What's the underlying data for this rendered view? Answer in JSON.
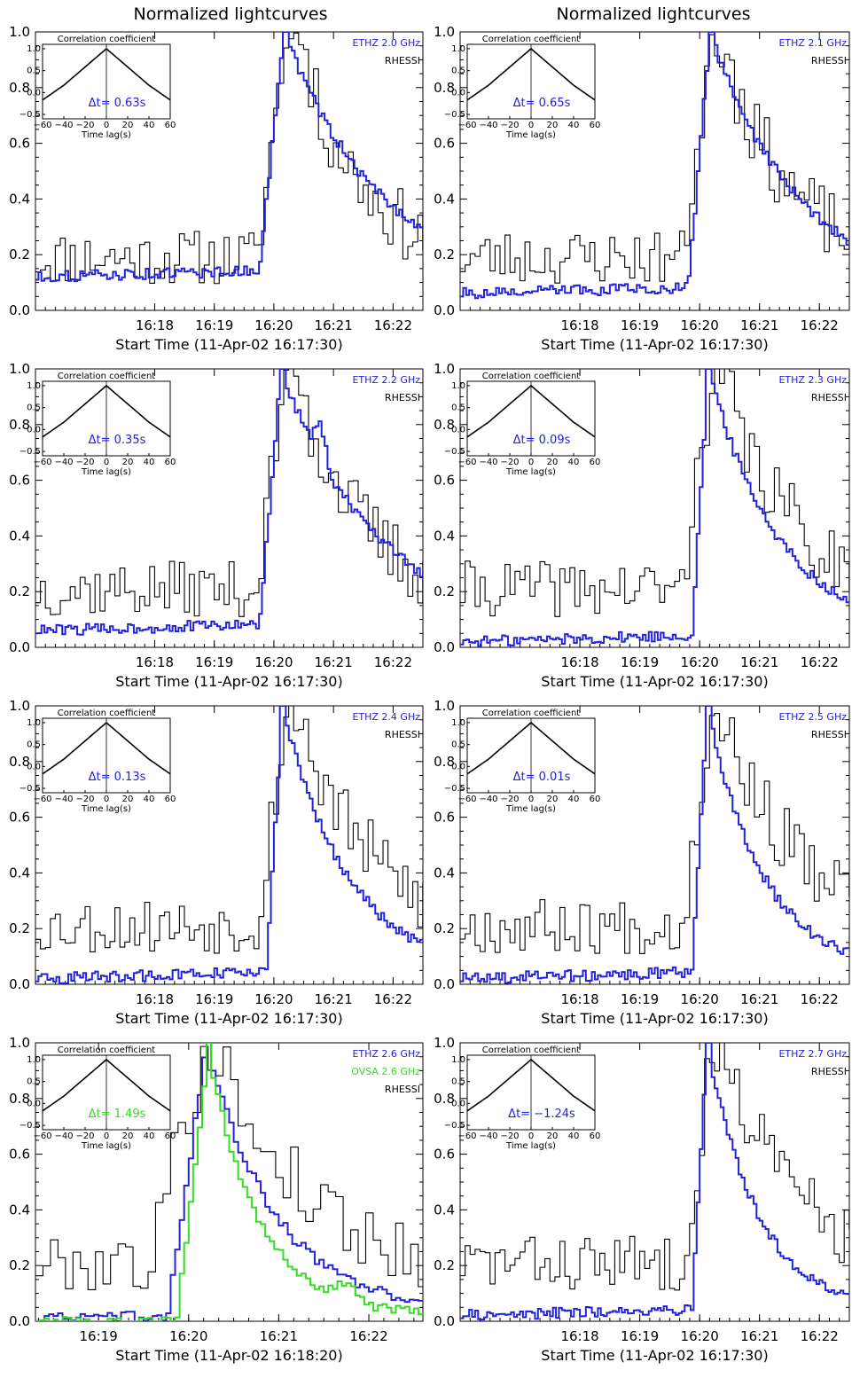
{
  "figure": {
    "titles": [
      "Normalized lightcurves",
      "Normalized lightcurves"
    ],
    "y_ticks": [
      "0.0",
      "0.2",
      "0.4",
      "0.6",
      "0.8",
      "1.0"
    ],
    "inset_title": "Correlation coefficient",
    "inset_xlabel": "Time lag(s)",
    "inset_xticks": [
      "−60",
      "−40",
      "−20",
      "0",
      "20",
      "40",
      "60"
    ],
    "inset_yticks": [
      "1.0",
      "0.5",
      "0.0",
      "−0.5"
    ],
    "colors": {
      "ethz": "#2222dd",
      "ovsa": "#33dd22",
      "rhessi": "#000000"
    }
  },
  "chart_data": [
    {
      "type": "line",
      "xlabel": "Start Time (11-Apr-02 16:17:30)",
      "xticks": [
        "16:18",
        "16:19",
        "16:20",
        "16:21",
        "16:22"
      ],
      "xlim": [
        16.0,
        22.5
      ],
      "ylim": [
        0,
        1
      ],
      "series": [
        {
          "name": "ETHZ 2.0 GHz",
          "color": "#2222dd"
        },
        {
          "name": "RHESSI",
          "color": "#000000"
        }
      ],
      "lag": {
        "label": "Δt= 0.63s",
        "value": 0.63,
        "color": "#2222dd"
      }
    },
    {
      "type": "line",
      "xlabel": "Start Time (11-Apr-02 16:17:30)",
      "xticks": [
        "16:18",
        "16:19",
        "16:20",
        "16:21",
        "16:22"
      ],
      "xlim": [
        16.0,
        22.5
      ],
      "ylim": [
        0,
        1
      ],
      "series": [
        {
          "name": "ETHZ 2.1 GHz",
          "color": "#2222dd"
        },
        {
          "name": "RHESSI",
          "color": "#000000"
        }
      ],
      "lag": {
        "label": "Δt= 0.65s",
        "value": 0.65,
        "color": "#2222dd"
      }
    },
    {
      "type": "line",
      "xlabel": "Start Time (11-Apr-02 16:17:30)",
      "xticks": [
        "16:18",
        "16:19",
        "16:20",
        "16:21",
        "16:22"
      ],
      "xlim": [
        16.0,
        22.5
      ],
      "ylim": [
        0,
        1
      ],
      "series": [
        {
          "name": "ETHZ 2.2 GHz",
          "color": "#2222dd"
        },
        {
          "name": "RHESSI",
          "color": "#000000"
        }
      ],
      "lag": {
        "label": "Δt= 0.35s",
        "value": 0.35,
        "color": "#2222dd"
      }
    },
    {
      "type": "line",
      "xlabel": "Start Time (11-Apr-02 16:17:30)",
      "xticks": [
        "16:18",
        "16:19",
        "16:20",
        "16:21",
        "16:22"
      ],
      "xlim": [
        16.0,
        22.5
      ],
      "ylim": [
        0,
        1
      ],
      "series": [
        {
          "name": "ETHZ 2.3 GHz",
          "color": "#2222dd"
        },
        {
          "name": "RHESSI",
          "color": "#000000"
        }
      ],
      "lag": {
        "label": "Δt= 0.09s",
        "value": 0.09,
        "color": "#2222dd"
      }
    },
    {
      "type": "line",
      "xlabel": "Start Time (11-Apr-02 16:17:30)",
      "xticks": [
        "16:18",
        "16:19",
        "16:20",
        "16:21",
        "16:22"
      ],
      "xlim": [
        16.0,
        22.5
      ],
      "ylim": [
        0,
        1
      ],
      "series": [
        {
          "name": "ETHZ 2.4 GHz",
          "color": "#2222dd"
        },
        {
          "name": "RHESSI",
          "color": "#000000"
        }
      ],
      "lag": {
        "label": "Δt= 0.13s",
        "value": 0.13,
        "color": "#2222dd"
      }
    },
    {
      "type": "line",
      "xlabel": "Start Time (11-Apr-02 16:17:30)",
      "xticks": [
        "16:18",
        "16:19",
        "16:20",
        "16:21",
        "16:22"
      ],
      "xlim": [
        16.0,
        22.5
      ],
      "ylim": [
        0,
        1
      ],
      "series": [
        {
          "name": "ETHZ 2.5 GHz",
          "color": "#2222dd"
        },
        {
          "name": "RHESSI",
          "color": "#000000"
        }
      ],
      "lag": {
        "label": "Δt= 0.01s",
        "value": 0.01,
        "color": "#2222dd"
      }
    },
    {
      "type": "line",
      "xlabel": "Start Time (11-Apr-02 16:18:20)",
      "xticks": [
        "16:19",
        "16:20",
        "16:21",
        "16:22"
      ],
      "xlim": [
        18.3,
        22.6
      ],
      "ylim": [
        0,
        1
      ],
      "series": [
        {
          "name": "ETHZ 2.6 GHz",
          "color": "#2222dd"
        },
        {
          "name": "OVSA 2.6 GHz",
          "color": "#33dd22"
        },
        {
          "name": "RHESSI",
          "color": "#000000"
        }
      ],
      "lag": {
        "label": "Δt= 1.49s",
        "value": 1.49,
        "color": "#33dd22"
      }
    },
    {
      "type": "line",
      "xlabel": "Start Time (11-Apr-02 16:17:30)",
      "xticks": [
        "16:18",
        "16:19",
        "16:20",
        "16:21",
        "16:22"
      ],
      "xlim": [
        16.0,
        22.5
      ],
      "ylim": [
        0,
        1
      ],
      "series": [
        {
          "name": "ETHZ 2.7 GHz",
          "color": "#2222dd"
        },
        {
          "name": "RHESSI",
          "color": "#000000"
        }
      ],
      "lag": {
        "label": "Δt= −1.24s",
        "value": -1.24,
        "color": "#2222dd"
      }
    }
  ]
}
